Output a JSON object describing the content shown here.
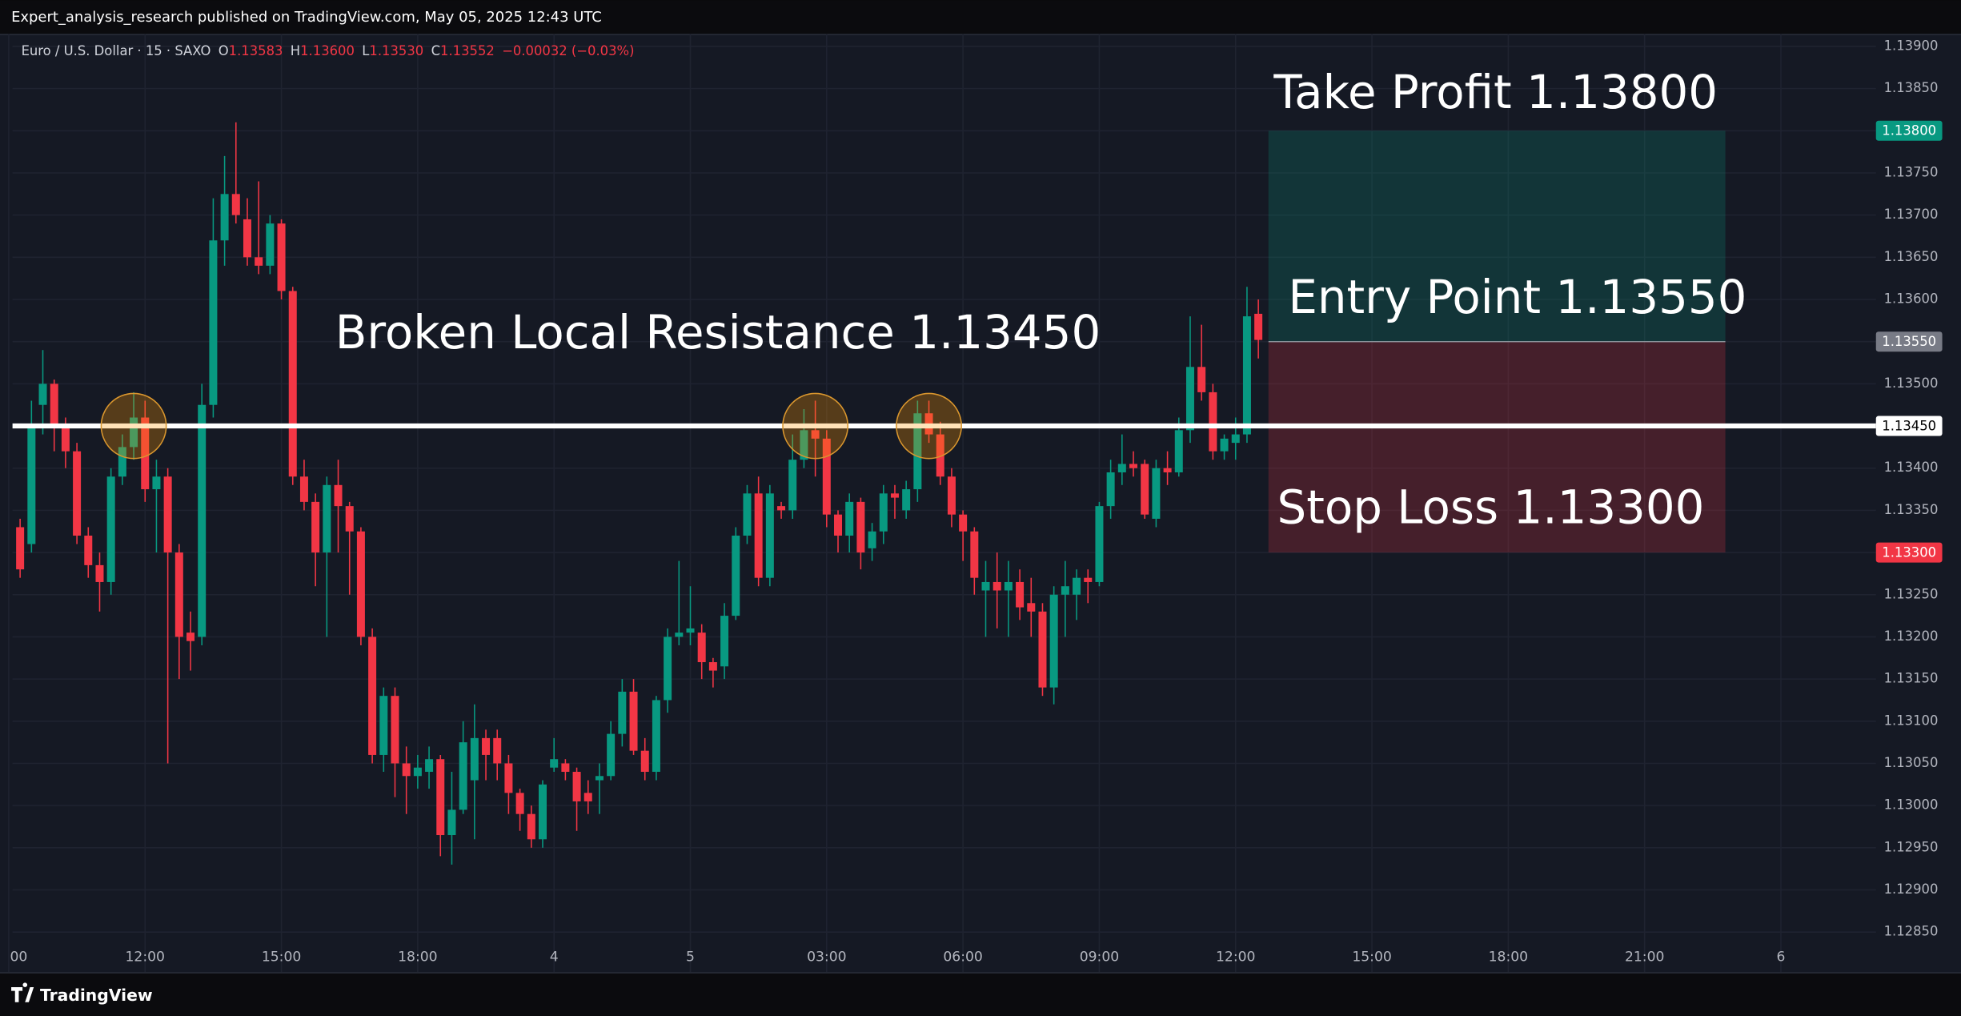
{
  "chart_data": {
    "type": "candlestick",
    "header": "Expert_analysis_research published on TradingView.com, May 05, 2025 12:43 UTC",
    "symbol": "Euro / U.S. Dollar · 15 · SAXO",
    "legend": [
      {
        "key": "O",
        "value": "1.13583"
      },
      {
        "key": "H",
        "value": "1.13600"
      },
      {
        "key": "L",
        "value": "1.13530"
      },
      {
        "key": "C",
        "value": "1.13552"
      }
    ],
    "change": "−0.00032 (−0.03%)",
    "categories": [
      "00",
      null,
      null,
      null,
      null,
      null,
      null,
      null,
      null,
      null,
      null,
      null,
      "12:00",
      null,
      null,
      null,
      null,
      null,
      null,
      null,
      null,
      null,
      null,
      null,
      "15:00",
      null,
      null,
      null,
      null,
      null,
      null,
      null,
      null,
      null,
      null,
      null,
      "18:00",
      null,
      null,
      null,
      null,
      null,
      null,
      null,
      null,
      null,
      null,
      null,
      "4",
      null,
      null,
      null,
      null,
      null,
      null,
      null,
      null,
      null,
      null,
      null,
      "5",
      null,
      null,
      null,
      null,
      null,
      null,
      null,
      null,
      null,
      null,
      null,
      "03:00",
      null,
      null,
      null,
      null,
      null,
      null,
      null,
      null,
      null,
      null,
      null,
      "06:00",
      null,
      null,
      null,
      null,
      null,
      null,
      null,
      null,
      null,
      null,
      null,
      "09:00",
      null,
      null,
      null,
      null,
      null,
      null,
      null,
      null,
      null,
      null,
      null,
      "12:00",
      null,
      null,
      null,
      null,
      null,
      null,
      null,
      null,
      null,
      null,
      null,
      "15:00",
      null,
      null,
      null,
      null,
      null,
      null,
      null,
      null,
      null,
      null,
      null,
      "18:00",
      null,
      null,
      null,
      null,
      null,
      null,
      null,
      null,
      null,
      null,
      null,
      "21:00",
      null,
      null,
      null,
      null,
      null,
      null,
      null,
      null,
      null,
      null,
      null,
      "6"
    ],
    "open": [
      null,
      1.1333,
      1.1331,
      1.13475,
      1.135,
      1.1345,
      1.1342,
      1.1332,
      1.13285,
      1.13265,
      1.1339,
      1.13425,
      1.1346,
      1.13375,
      1.1339,
      1.133,
      1.13205,
      1.132,
      1.13475,
      1.1367,
      1.13725,
      1.13695,
      1.1365,
      1.1364,
      1.1369,
      1.1361,
      1.1339,
      1.1336,
      1.133,
      1.1338,
      1.13355,
      1.13325,
      1.132,
      1.1306,
      1.1313,
      1.1305,
      1.13035,
      1.1304,
      1.13055,
      1.12965,
      1.12995,
      1.1303,
      1.1308,
      1.1308,
      1.1305,
      1.13015,
      1.1299,
      1.1296,
      1.13045,
      1.1305,
      1.1304,
      1.13015,
      1.1303,
      1.13035,
      1.13085,
      1.13135,
      1.13065,
      1.1304,
      1.13125,
      1.132,
      1.13205,
      1.13205,
      1.1317,
      1.13165,
      1.13225,
      1.1332,
      1.1337,
      1.1327,
      1.13355,
      1.1335,
      1.1341,
      1.13445,
      1.13435,
      1.13345,
      1.1332,
      1.1336,
      1.13305,
      1.13325,
      1.1337,
      1.1335,
      1.13375,
      1.13465,
      1.1344,
      1.1339,
      1.13345,
      1.13325,
      1.13255,
      1.13265,
      1.13255,
      1.13265,
      1.1324,
      1.1323,
      1.1314,
      1.1325,
      1.1325,
      1.1327,
      1.13265,
      1.13355,
      1.13395,
      1.13405,
      1.13405,
      1.1334,
      1.134,
      1.13395,
      1.13445,
      1.1352,
      1.1349,
      1.1342,
      1.1343,
      1.1344,
      1.13583,
      null,
      null,
      null,
      null,
      null,
      null,
      null,
      null,
      null,
      null,
      null,
      null,
      null,
      null,
      null,
      null,
      null,
      null,
      null,
      null,
      null,
      null,
      null,
      null,
      null,
      null,
      null,
      null,
      null,
      null,
      null,
      null,
      null,
      null,
      null,
      null,
      null,
      null,
      null,
      null,
      null,
      null,
      null,
      null,
      null,
      null
    ],
    "high": [
      null,
      1.1334,
      1.1348,
      1.1354,
      1.13505,
      1.1346,
      1.1343,
      1.1333,
      1.133,
      1.134,
      1.1344,
      1.1349,
      1.1348,
      1.1341,
      1.134,
      1.1331,
      1.1323,
      1.135,
      1.1372,
      1.1377,
      1.1381,
      1.1372,
      1.1374,
      1.137,
      1.13695,
      1.13615,
      1.1341,
      1.1337,
      1.1339,
      1.1341,
      1.1336,
      1.1333,
      1.1321,
      1.1314,
      1.1314,
      1.1307,
      1.1306,
      1.1307,
      1.1306,
      1.1304,
      1.131,
      1.1312,
      1.1309,
      1.1309,
      1.1306,
      1.1302,
      1.13,
      1.1303,
      1.1308,
      1.13055,
      1.13045,
      1.1303,
      1.1305,
      1.131,
      1.1315,
      1.1315,
      1.1308,
      1.1313,
      1.1321,
      1.1329,
      1.1326,
      1.13215,
      1.13175,
      1.1324,
      1.1333,
      1.1338,
      1.1339,
      1.1338,
      1.1336,
      1.1344,
      1.1347,
      1.1348,
      1.13445,
      1.1335,
      1.1337,
      1.13365,
      1.13335,
      1.1338,
      1.1338,
      1.13385,
      1.1348,
      1.1348,
      1.13455,
      1.134,
      1.1335,
      1.1333,
      1.1329,
      1.133,
      1.1329,
      1.1328,
      1.1327,
      1.1324,
      1.1326,
      1.1329,
      1.1328,
      1.1328,
      1.1336,
      1.1341,
      1.1344,
      1.1342,
      1.1341,
      1.1341,
      1.1342,
      1.1346,
      1.1358,
      1.1357,
      1.135,
      1.1344,
      1.1346,
      1.13615,
      1.136,
      null,
      null,
      null,
      null,
      null,
      null,
      null,
      null,
      null,
      null,
      null,
      null,
      null,
      null,
      null,
      null,
      null,
      null,
      null,
      null,
      null,
      null,
      null,
      null,
      null,
      null,
      null,
      null,
      null,
      null,
      null,
      null,
      null,
      null,
      null,
      null,
      null,
      null,
      null,
      null,
      null,
      null,
      null,
      null,
      null,
      null
    ],
    "low": [
      null,
      1.1327,
      1.133,
      1.1344,
      1.1342,
      1.134,
      1.1331,
      1.1327,
      1.1323,
      1.1325,
      1.1338,
      1.1341,
      1.1336,
      1.133,
      1.1305,
      1.1315,
      1.1316,
      1.1319,
      1.1346,
      1.1364,
      1.1369,
      1.1364,
      1.1363,
      1.1363,
      1.136,
      1.1338,
      1.1335,
      1.1326,
      1.132,
      1.133,
      1.1325,
      1.1319,
      1.1305,
      1.1304,
      1.1301,
      1.1299,
      1.1302,
      1.1302,
      1.1294,
      1.1293,
      1.1299,
      1.1296,
      1.1303,
      1.1303,
      1.1299,
      1.1297,
      1.1295,
      1.1295,
      1.1304,
      1.1303,
      1.1297,
      1.1299,
      1.1299,
      1.1303,
      1.1307,
      1.1306,
      1.1303,
      1.1303,
      1.1311,
      1.1319,
      1.1319,
      1.1315,
      1.1314,
      1.1315,
      1.1322,
      1.1331,
      1.1326,
      1.1326,
      1.1334,
      1.1334,
      1.134,
      1.1339,
      1.1333,
      1.133,
      1.133,
      1.1328,
      1.1329,
      1.1331,
      1.1334,
      1.1334,
      1.1336,
      1.1343,
      1.1338,
      1.1333,
      1.1329,
      1.1325,
      1.132,
      1.1321,
      1.132,
      1.1322,
      1.132,
      1.1313,
      1.1312,
      1.132,
      1.1322,
      1.1324,
      1.1326,
      1.1334,
      1.1338,
      1.1339,
      1.1334,
      1.1333,
      1.1338,
      1.1339,
      1.1343,
      1.1348,
      1.1341,
      1.1341,
      1.1341,
      1.1343,
      1.1353,
      null,
      null,
      null,
      null,
      null,
      null,
      null,
      null,
      null,
      null,
      null,
      null,
      null,
      null,
      null,
      null,
      null,
      null,
      null,
      null,
      null,
      null,
      null,
      null,
      null,
      null,
      null,
      null,
      null,
      null,
      null,
      null,
      null,
      null,
      null,
      null,
      null,
      null,
      null,
      null,
      null,
      null,
      null,
      null,
      null,
      null
    ],
    "close": [
      null,
      1.1328,
      1.1345,
      1.135,
      1.1345,
      1.1342,
      1.1332,
      1.13285,
      1.13265,
      1.1339,
      1.13425,
      1.1346,
      1.13375,
      1.1339,
      1.133,
      1.132,
      1.13195,
      1.13475,
      1.1367,
      1.13725,
      1.137,
      1.1365,
      1.1364,
      1.1369,
      1.1361,
      1.1339,
      1.1336,
      1.133,
      1.1338,
      1.13355,
      1.13325,
      1.132,
      1.1306,
      1.1313,
      1.1305,
      1.13035,
      1.13045,
      1.13055,
      1.12965,
      1.12995,
      1.13075,
      1.1308,
      1.1306,
      1.1305,
      1.13015,
      1.1299,
      1.1296,
      1.13025,
      1.13055,
      1.1304,
      1.13005,
      1.13005,
      1.13035,
      1.13085,
      1.13135,
      1.13065,
      1.1304,
      1.13125,
      1.132,
      1.13205,
      1.1321,
      1.1317,
      1.1316,
      1.13225,
      1.1332,
      1.1337,
      1.1327,
      1.1337,
      1.1335,
      1.1341,
      1.13445,
      1.13435,
      1.13345,
      1.1332,
      1.1336,
      1.133,
      1.13325,
      1.1337,
      1.13365,
      1.13375,
      1.13465,
      1.1344,
      1.1339,
      1.13345,
      1.13325,
      1.1327,
      1.13265,
      1.13255,
      1.13265,
      1.13235,
      1.1323,
      1.1314,
      1.1325,
      1.1326,
      1.1327,
      1.13265,
      1.13355,
      1.13395,
      1.13405,
      1.134,
      1.13345,
      1.134,
      1.13395,
      1.13445,
      1.1352,
      1.1349,
      1.1342,
      1.13435,
      1.1344,
      1.1358,
      1.13552,
      null,
      null,
      null,
      null,
      null,
      null,
      null,
      null,
      null,
      null,
      null,
      null,
      null,
      null,
      null,
      null,
      null,
      null,
      null,
      null,
      null,
      null,
      null,
      null,
      null,
      null,
      null,
      null,
      null,
      null,
      null,
      null,
      null,
      null,
      null,
      null,
      null,
      null,
      null,
      null,
      null,
      null,
      null,
      null,
      null,
      null
    ],
    "up_color": "#089981",
    "down_color": "#f23645",
    "ylim": [
      1.1285,
      1.139
    ],
    "yticks": [
      {
        "value": 1.139,
        "label": "1.13900"
      },
      {
        "value": 1.1385,
        "label": "1.13850"
      },
      {
        "value": 1.138,
        "label": "1.13800"
      },
      {
        "value": 1.1375,
        "label": "1.13750"
      },
      {
        "value": 1.137,
        "label": "1.13700"
      },
      {
        "value": 1.1365,
        "label": "1.13650"
      },
      {
        "value": 1.136,
        "label": "1.13600"
      },
      {
        "value": 1.1355,
        "label": "1.13550"
      },
      {
        "value": 1.135,
        "label": "1.13500"
      },
      {
        "value": 1.1345,
        "label": "1.13450"
      },
      {
        "value": 1.134,
        "label": "1.13400"
      },
      {
        "value": 1.1335,
        "label": "1.13350"
      },
      {
        "value": 1.133,
        "label": "1.13300"
      },
      {
        "value": 1.1325,
        "label": "1.13250"
      },
      {
        "value": 1.132,
        "label": "1.13200"
      },
      {
        "value": 1.1315,
        "label": "1.13150"
      },
      {
        "value": 1.131,
        "label": "1.13100"
      },
      {
        "value": 1.1305,
        "label": "1.13050"
      },
      {
        "value": 1.13,
        "label": "1.13000"
      },
      {
        "value": 1.1295,
        "label": "1.12950"
      },
      {
        "value": 1.129,
        "label": "1.12900"
      },
      {
        "value": 1.1285,
        "label": "1.12850"
      }
    ],
    "grid": true,
    "price_tags": [
      {
        "value": 1.138,
        "label": "1.13800",
        "color": "#089981"
      },
      {
        "value": 1.1355,
        "label": "1.13550",
        "color": "#787b86"
      },
      {
        "value": 1.1345,
        "label": "1.13450",
        "color": "#ffffff"
      },
      {
        "value": 1.133,
        "label": "1.13300",
        "color": "#f23645"
      }
    ],
    "resistance": {
      "value": 1.1345,
      "label": "Broken Local Resistance 1.13450"
    },
    "position": {
      "take_profit": {
        "value": 1.138,
        "label": "Take Profit 1.13800"
      },
      "entry": {
        "value": 1.1355,
        "label": "Entry Point 1.13550"
      },
      "stop_loss": {
        "value": 1.133,
        "label": "Stop Loss 1.13300"
      }
    },
    "branding": "TradingView"
  }
}
